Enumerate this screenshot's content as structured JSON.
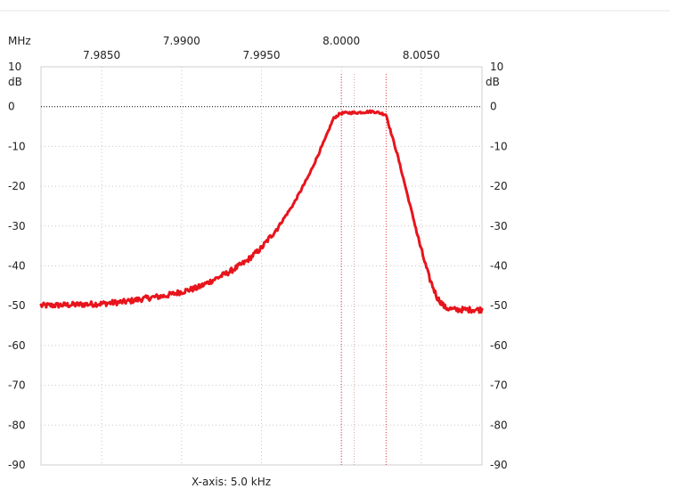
{
  "chart_data": {
    "type": "line",
    "x_unit_label": "MHz",
    "y_unit_label": "dB",
    "x_axis_caption": "X-axis: 5.0 kHz",
    "xlim": [
      7.9812,
      8.0088
    ],
    "ylim": [
      -90,
      10
    ],
    "x_ticks_upper": [
      "7.9900",
      "8.0000"
    ],
    "x_ticks_lower": [
      "7.9850",
      "7.9950",
      "8.0050"
    ],
    "y_ticks": [
      "10",
      "0",
      "-10",
      "-20",
      "-30",
      "-40",
      "-50",
      "-60",
      "-70",
      "-80",
      "-90"
    ],
    "grid": true,
    "reference_line_db": 0,
    "markers_mhz": [
      8.0,
      8.0008,
      8.0028
    ],
    "series": [
      {
        "color": "#e8141c",
        "x": [
          7.9812,
          7.983,
          7.985,
          7.9865,
          7.988,
          7.989,
          7.99,
          7.991,
          7.992,
          7.993,
          7.994,
          7.995,
          7.996,
          7.997,
          7.998,
          7.999,
          7.9995,
          7.9999,
          8.0001,
          8.001,
          8.002,
          8.0028,
          8.003,
          8.0035,
          8.004,
          8.0045,
          8.005,
          8.0055,
          8.006,
          8.0065,
          8.007,
          8.008,
          8.0088
        ],
        "y": [
          -50,
          -49.8,
          -49.5,
          -49,
          -48,
          -47.5,
          -46.5,
          -45.5,
          -43.5,
          -41.5,
          -39,
          -35.5,
          -30.5,
          -24.5,
          -17,
          -8,
          -3,
          -1.8,
          -1.6,
          -1.5,
          -1.2,
          -2,
          -5,
          -12,
          -20,
          -28,
          -36,
          -43,
          -48,
          -50.5,
          -51,
          -51,
          -51
        ]
      }
    ]
  }
}
